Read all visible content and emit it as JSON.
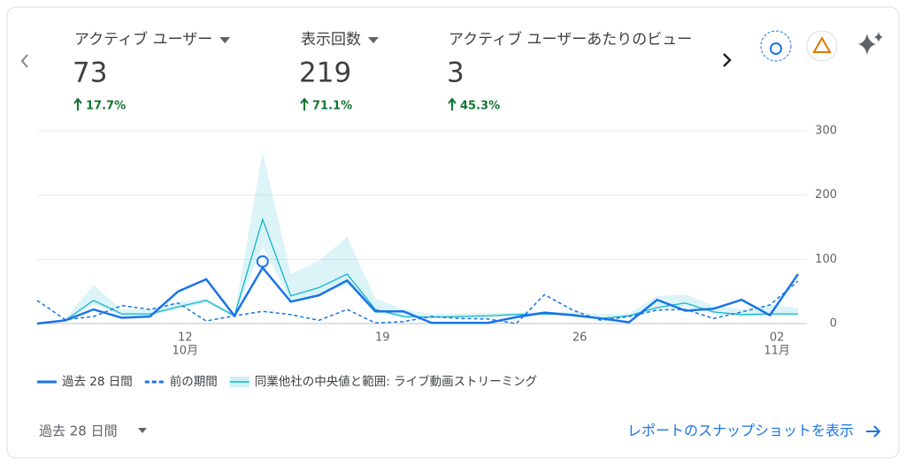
{
  "metrics": [
    {
      "title": "アクティブ ユーザー",
      "value": "73",
      "change": "17.7%"
    },
    {
      "title": "表示回数",
      "value": "219",
      "change": "71.1%"
    },
    {
      "title": "アクティブ ユーザーあたりのビュー",
      "value": "3",
      "change": "45.3%"
    }
  ],
  "chart_data": {
    "type": "line",
    "categories": [
      null,
      null,
      null,
      null,
      null,
      "12",
      null,
      null,
      null,
      null,
      null,
      null,
      "19",
      null,
      null,
      null,
      null,
      null,
      null,
      "26",
      null,
      null,
      null,
      null,
      null,
      null,
      "02",
      null
    ],
    "category_sublabels": [
      null,
      null,
      null,
      null,
      null,
      "10月",
      null,
      null,
      null,
      null,
      null,
      null,
      null,
      null,
      null,
      null,
      null,
      null,
      null,
      null,
      null,
      null,
      null,
      null,
      null,
      null,
      "11月",
      null
    ],
    "ylim": [
      0,
      300
    ],
    "yticks": [
      0,
      100,
      200,
      300
    ],
    "grid": true,
    "series": [
      {
        "name": "過去 28 日間",
        "color": "#1a73e8",
        "style": "solid",
        "values": [
          0,
          5,
          22,
          9,
          11,
          50,
          69,
          12,
          87,
          34,
          44,
          67,
          19,
          19,
          1,
          1,
          1,
          10,
          17,
          13,
          8,
          2,
          37,
          20,
          23,
          37,
          13,
          77
        ]
      },
      {
        "name": "前の期間",
        "color": "#1a73e8",
        "style": "dashed",
        "values": [
          36,
          6,
          11,
          28,
          22,
          32,
          4,
          12,
          19,
          14,
          5,
          22,
          1,
          3,
          11,
          8,
          7,
          0,
          45,
          21,
          5,
          11,
          21,
          22,
          8,
          18,
          29,
          66
        ]
      },
      {
        "name": "同業他社の中央値と範囲: ライブ動画ストリーミング",
        "color": "#12b5cb",
        "style": "band",
        "values": [
          null,
          5,
          36,
          15,
          15,
          26,
          36,
          12,
          162,
          43,
          56,
          77,
          22,
          11,
          10,
          11,
          12,
          14,
          15,
          14,
          8,
          12,
          25,
          32,
          18,
          14,
          15,
          15
        ],
        "range": {
          "low": [
            null,
            4,
            30,
            12,
            12,
            22,
            32,
            10,
            120,
            35,
            45,
            60,
            18,
            8,
            8,
            9,
            10,
            12,
            13,
            12,
            6,
            10,
            20,
            27,
            15,
            11,
            12,
            12
          ],
          "high": [
            null,
            7,
            60,
            22,
            22,
            33,
            39,
            15,
            267,
            77,
            98,
            135,
            39,
            22,
            15,
            16,
            17,
            17,
            18,
            18,
            15,
            16,
            43,
            45,
            28,
            22,
            29,
            25
          ]
        }
      }
    ]
  },
  "footer": {
    "period": "過去 28 日間",
    "link": "レポートのスナップショットを表示"
  }
}
